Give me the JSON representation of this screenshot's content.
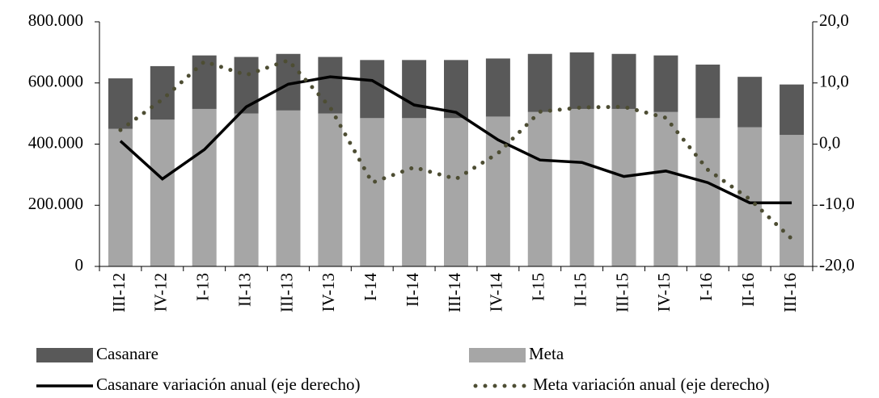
{
  "chart_data": {
    "type": "bar",
    "stacked": true,
    "categories": [
      "III-12",
      "IV-12",
      "I-13",
      "II-13",
      "III-13",
      "IV-13",
      "I-14",
      "II-14",
      "III-14",
      "IV-14",
      "I-15",
      "II-15",
      "III-15",
      "IV-15",
      "I-16",
      "II-16",
      "III-16"
    ],
    "series": [
      {
        "name": "Casanare",
        "type": "bar",
        "color": "#595959",
        "values": [
          165000,
          175000,
          175000,
          185000,
          185000,
          185000,
          190000,
          190000,
          190000,
          190000,
          190000,
          185000,
          180000,
          185000,
          175000,
          165000,
          165000
        ]
      },
      {
        "name": "Meta",
        "type": "bar",
        "color": "#a6a6a6",
        "values": [
          450000,
          480000,
          515000,
          500000,
          510000,
          500000,
          485000,
          485000,
          485000,
          490000,
          505000,
          515000,
          515000,
          505000,
          485000,
          455000,
          430000
        ]
      },
      {
        "name": "Casanare variación anual (eje derecho)",
        "type": "line",
        "axis": "y2",
        "color": "#000000",
        "style": "solid",
        "values": [
          0.5,
          -5.7,
          -0.9,
          6.1,
          9.8,
          11.0,
          10.4,
          6.4,
          5.2,
          0.7,
          -2.6,
          -3.0,
          -5.3,
          -4.4,
          -6.3,
          -9.6,
          -9.6
        ]
      },
      {
        "name": "Meta variación anual (eje derecho)",
        "type": "line",
        "axis": "y2",
        "color": "#4d4d33",
        "style": "dotted",
        "values": [
          2.3,
          7.3,
          13.5,
          11.3,
          13.7,
          6.0,
          -6.3,
          -3.8,
          -5.7,
          -1.5,
          5.3,
          6.0,
          6.1,
          4.3,
          -4.2,
          -9.0,
          -15.5
        ]
      }
    ],
    "ylim": [
      0,
      800000
    ],
    "yticks": [
      0,
      {
        "value": 200000,
        "label": "200.000"
      },
      {
        "value": 400000,
        "label": "400.000"
      },
      {
        "value": 600000,
        "label": "600.000"
      },
      {
        "value": 800000,
        "label": "800.000"
      }
    ],
    "y2lim": [
      -20,
      20
    ],
    "y2ticks": [
      {
        "value": -20,
        "label": "-20,0"
      },
      {
        "value": -10,
        "label": "-10,0"
      },
      {
        "value": 0,
        "label": "0,0"
      },
      {
        "value": 10,
        "label": "10,0"
      },
      {
        "value": 20,
        "label": "20,0"
      }
    ],
    "grid": false
  }
}
